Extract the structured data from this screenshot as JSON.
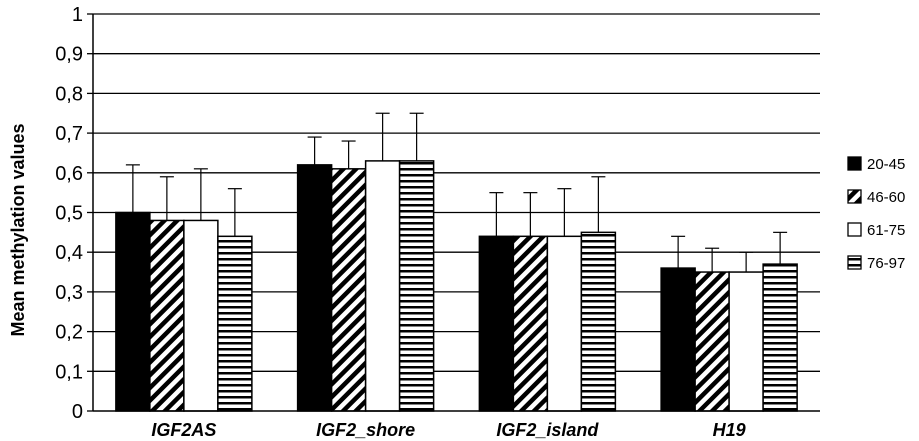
{
  "chart_data": {
    "type": "bar",
    "title": "",
    "xlabel": "",
    "ylabel": "Mean methylation values",
    "ylim": [
      0,
      1
    ],
    "yticks": [
      "0",
      "0,1",
      "0,2",
      "0,3",
      "0,4",
      "0,5",
      "0,6",
      "0,7",
      "0,8",
      "0,9",
      "1"
    ],
    "grid": true,
    "legend_position": "right",
    "categories": [
      "IGF2AS",
      "IGF2_shore",
      "IGF2_island",
      "H19"
    ],
    "series": [
      {
        "name": "20-45",
        "values": [
          0.5,
          0.62,
          0.44,
          0.36
        ],
        "errors": [
          0.12,
          0.07,
          0.11,
          0.08
        ],
        "pattern": "solid-black"
      },
      {
        "name": "46-60",
        "values": [
          0.48,
          0.61,
          0.44,
          0.35
        ],
        "errors": [
          0.11,
          0.07,
          0.11,
          0.06
        ],
        "pattern": "diagonal-stripes"
      },
      {
        "name": "61-75",
        "values": [
          0.48,
          0.63,
          0.44,
          0.35
        ],
        "errors": [
          0.13,
          0.12,
          0.12,
          0.05
        ],
        "pattern": "white"
      },
      {
        "name": "76-97",
        "values": [
          0.44,
          0.63,
          0.45,
          0.37
        ],
        "errors": [
          0.12,
          0.12,
          0.14,
          0.08
        ],
        "pattern": "horizontal-stripes"
      }
    ]
  }
}
